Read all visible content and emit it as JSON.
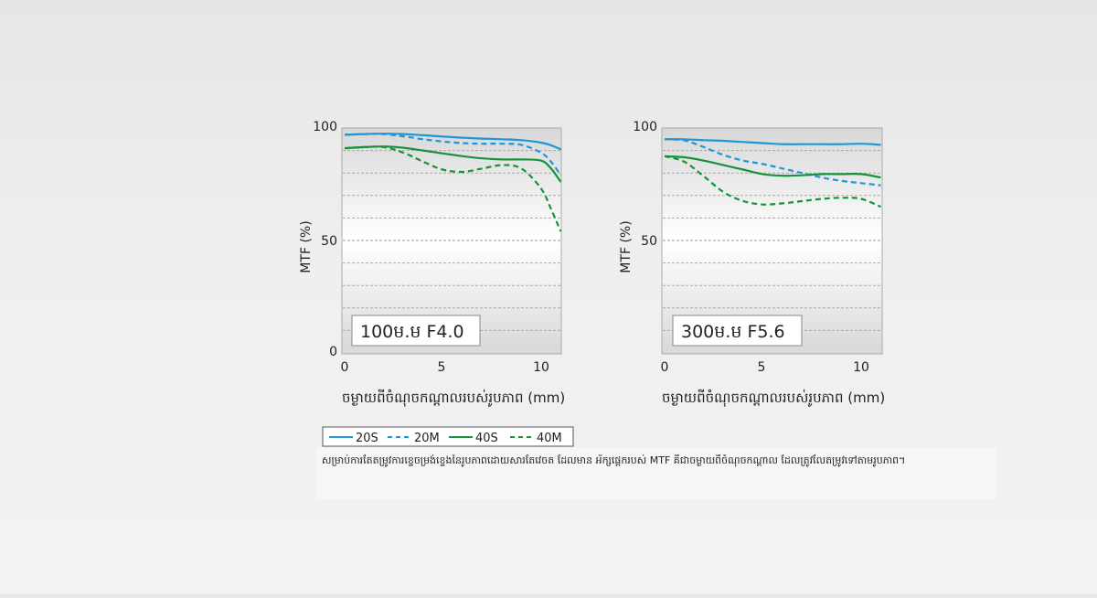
{
  "chart_data": [
    {
      "type": "line",
      "badge": "100ម.ម F4.0",
      "ylabel": "MTF (%)",
      "xlabel": "ចម្ងាយពីចំណុចកណ្ដាលរបស់រូបភាព (mm)",
      "xlim": [
        0,
        11
      ],
      "ylim": [
        0,
        100
      ],
      "xticks": [
        0,
        5,
        10
      ],
      "yticks": [
        0,
        50,
        100
      ],
      "grid": "dashed horizontal every 10",
      "series": [
        {
          "name": "20S",
          "x": [
            0,
            1,
            2,
            3,
            4,
            5,
            6,
            7,
            8,
            9,
            10,
            10.5,
            11
          ],
          "y": [
            97,
            97.3,
            97.5,
            97.3,
            96.8,
            96.2,
            95.7,
            95.3,
            95,
            94.6,
            93.5,
            92.3,
            90.5
          ]
        },
        {
          "name": "20M",
          "x": [
            0,
            1,
            2,
            3,
            4,
            5,
            6,
            7,
            8,
            9,
            10,
            10.5,
            11
          ],
          "y": [
            97,
            97.3,
            97.3,
            96.3,
            95,
            94,
            93.3,
            93,
            93,
            92.5,
            89,
            85,
            79
          ]
        },
        {
          "name": "40S",
          "x": [
            0,
            1,
            2,
            3,
            4,
            5,
            6,
            7,
            8,
            9,
            10,
            10.5,
            11
          ],
          "y": [
            91,
            91.5,
            91.8,
            91.2,
            90,
            88.7,
            87.5,
            86.5,
            86,
            86,
            85.5,
            82,
            76
          ]
        },
        {
          "name": "40M",
          "x": [
            0,
            1,
            2,
            3,
            4,
            5,
            6,
            7,
            8,
            9,
            10,
            10.5,
            11
          ],
          "y": [
            91,
            91.5,
            91.5,
            89,
            85,
            81.5,
            80.5,
            82,
            83.5,
            82,
            73,
            64,
            54
          ]
        }
      ]
    },
    {
      "type": "line",
      "badge": "300ម.ម F5.6",
      "ylabel": "MTF (%)",
      "xlabel": "ចម្ងាយពីចំណុចកណ្ដាលរបស់រូបភាព (mm)",
      "xlim": [
        0,
        11
      ],
      "ylim": [
        0,
        100
      ],
      "xticks": [
        0,
        5,
        10
      ],
      "yticks": [
        50,
        100
      ],
      "grid": "dashed horizontal every 10",
      "series": [
        {
          "name": "20S",
          "x": [
            0,
            1,
            2,
            3,
            4,
            5,
            6,
            7,
            8,
            9,
            10,
            11
          ],
          "y": [
            95,
            95,
            94.6,
            94.3,
            93.8,
            93.3,
            92.8,
            92.8,
            92.8,
            92.8,
            93,
            92.5
          ]
        },
        {
          "name": "20M",
          "x": [
            0,
            1,
            2,
            3,
            4,
            5,
            6,
            7,
            8,
            9,
            10,
            11
          ],
          "y": [
            95,
            94.5,
            91.5,
            88,
            85.5,
            84,
            82,
            80,
            78,
            76.5,
            75.5,
            74.5
          ]
        },
        {
          "name": "40S",
          "x": [
            0,
            1,
            2,
            3,
            4,
            5,
            6,
            7,
            8,
            9,
            10,
            11
          ],
          "y": [
            87.5,
            87,
            85.5,
            83.5,
            81.5,
            79.5,
            78.8,
            79,
            79.5,
            79.5,
            79.5,
            78
          ]
        },
        {
          "name": "40M",
          "x": [
            0,
            1,
            2,
            3,
            4,
            5,
            6,
            7,
            8,
            9,
            10,
            11
          ],
          "y": [
            87.5,
            85,
            78.5,
            71.5,
            67.5,
            66,
            66.5,
            67.5,
            68.5,
            69,
            68.5,
            65
          ]
        }
      ]
    }
  ],
  "legend": [
    {
      "label": "20S",
      "color": "#1f96d8",
      "dash": "solid"
    },
    {
      "label": "20M",
      "color": "#1f96d8",
      "dash": "dashed"
    },
    {
      "label": "40S",
      "color": "#16923c",
      "dash": "solid"
    },
    {
      "label": "40M",
      "color": "#16923c",
      "dash": "dashed"
    }
  ],
  "colors": {
    "blue": "#1f96d8",
    "green": "#16923c"
  },
  "footnote": "សម្រាប់ការតែតម្រូវការខ្ទេចម្រង់ខ្ទេងនៃរូបភាពដោយសារតែវេចត ដែលមាន អ័ក្សផ្ដេករបស់ MTF គឺជាចម្ងាយពីចំណុចកណ្ដាល ដែលត្រូវលែតម្រូវទៅតាមរូបភាព។"
}
